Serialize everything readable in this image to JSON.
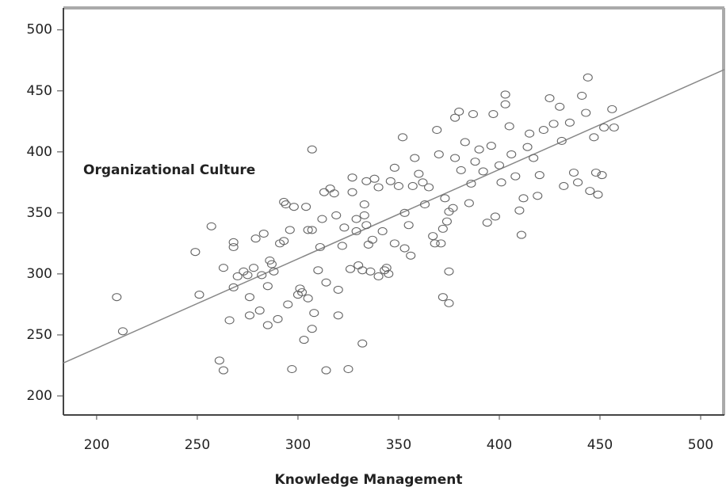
{
  "chart_data": {
    "type": "scatter",
    "xlabel": "Knowledge Management",
    "annotation": "Organizational Culture",
    "xlim": [
      183.5,
      511.8
    ],
    "ylim": [
      184.4,
      518
    ],
    "xticks": [
      200,
      250,
      300,
      350,
      400,
      450,
      500
    ],
    "yticks": [
      200,
      250,
      300,
      350,
      400,
      450,
      500
    ],
    "color": "#666666",
    "trend_line": {
      "x": [
        183.5,
        511.8
      ],
      "y": [
        227,
        467.5
      ],
      "color": "#888888"
    },
    "x": [
      210,
      213,
      249,
      251,
      257,
      261,
      263,
      263,
      266,
      268,
      268,
      268,
      270,
      273,
      275,
      276,
      276,
      278,
      279,
      281,
      282,
      283,
      285,
      285,
      286,
      287,
      288,
      290,
      291,
      293,
      293,
      294,
      295,
      296,
      297,
      298,
      300,
      301,
      302,
      303,
      304,
      305,
      305,
      307,
      307,
      307,
      308,
      310,
      311,
      312,
      313,
      314,
      314,
      316,
      318,
      319,
      320,
      320,
      322,
      323,
      325,
      326,
      327,
      327,
      329,
      329,
      330,
      332,
      332,
      333,
      333,
      334,
      334,
      335,
      336,
      337,
      338,
      340,
      340,
      342,
      343,
      344,
      345,
      346,
      348,
      348,
      350,
      352,
      353,
      353,
      355,
      356,
      357,
      358,
      360,
      362,
      363,
      365,
      367,
      368,
      369,
      370,
      371,
      372,
      372,
      373,
      374,
      375,
      375,
      375,
      377,
      378,
      378,
      380,
      381,
      383,
      385,
      386,
      387,
      388,
      390,
      392,
      394,
      396,
      397,
      398,
      400,
      401,
      403,
      403,
      405,
      406,
      408,
      410,
      411,
      412,
      414,
      415,
      417,
      419,
      420,
      422,
      425,
      427,
      430,
      431,
      432,
      435,
      437,
      439,
      441,
      443,
      444,
      445,
      447,
      448,
      449,
      451,
      452,
      456,
      457
    ],
    "y": [
      281,
      253,
      318,
      283,
      339,
      229,
      221,
      305,
      262,
      326,
      322,
      289,
      298,
      302,
      299,
      281,
      266,
      305,
      329,
      270,
      299,
      333,
      290,
      258,
      311,
      308,
      302,
      263,
      325,
      327,
      359,
      357,
      275,
      336,
      222,
      355,
      283,
      288,
      285,
      246,
      355,
      280,
      336,
      402,
      255,
      336,
      268,
      303,
      322,
      345,
      367,
      293,
      221,
      370,
      366,
      348,
      287,
      266,
      323,
      338,
      222,
      304,
      367,
      379,
      345,
      335,
      307,
      303,
      243,
      348,
      357,
      376,
      340,
      324,
      302,
      328,
      378,
      371,
      298,
      335,
      303,
      305,
      300,
      376,
      387,
      325,
      372,
      412,
      350,
      321,
      340,
      315,
      372,
      395,
      382,
      375,
      357,
      371,
      331,
      325,
      418,
      398,
      325,
      337,
      281,
      362,
      343,
      351,
      302,
      276,
      354,
      395,
      428,
      433,
      385,
      408,
      358,
      374,
      431,
      392,
      402,
      384,
      342,
      405,
      431,
      347,
      389,
      375,
      447,
      439,
      421,
      398,
      380,
      352,
      332,
      362,
      404,
      415,
      395,
      364,
      381,
      418,
      444,
      423,
      437,
      409,
      372,
      424,
      383,
      375,
      446,
      432,
      461,
      368,
      412,
      383,
      365,
      381,
      420,
      435,
      420
    ]
  }
}
